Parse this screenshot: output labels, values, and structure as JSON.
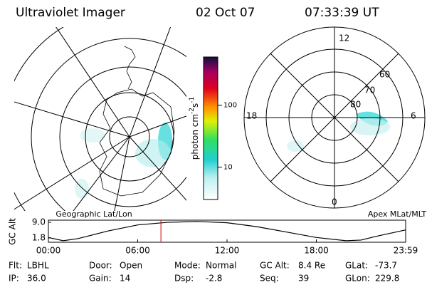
{
  "header": {
    "instrument": "Ultraviolet Imager",
    "date": "02 Oct 07",
    "time": "07:33:39 UT"
  },
  "geographic_map": {
    "caption": "Geographic Lat/Lon"
  },
  "magnetic_map": {
    "caption": "Apex MLat/MLT",
    "mlt_labels": [
      "12",
      "18",
      "6",
      "0"
    ],
    "mlat_labels": [
      "60",
      "70",
      "80"
    ]
  },
  "colorbar": {
    "label": "photon cm",
    "exp1": "-2",
    "unit2": "s",
    "exp2": "-1",
    "log": true,
    "ylim": [
      3,
      600
    ],
    "yticks": [
      10,
      100
    ]
  },
  "orbit_chart": {
    "type": "line",
    "ylabel": "GC Alt",
    "x": [
      0,
      1,
      2,
      4,
      6,
      8,
      10,
      12,
      14,
      16,
      18,
      20,
      21,
      22,
      24
    ],
    "values": [
      2.0,
      0.5,
      1.5,
      5.0,
      7.8,
      9.0,
      9.4,
      8.8,
      7.0,
      4.5,
      2.0,
      0.5,
      0.8,
      2.5,
      5.5
    ],
    "color": "#000000",
    "current_time": 7.56,
    "current_color": "#cc0000",
    "xlim": [
      0,
      24
    ],
    "ylim": [
      -0.2,
      10
    ],
    "xticks": [
      {
        "value": 0,
        "label": "00:00"
      },
      {
        "value": 6,
        "label": "06:00"
      },
      {
        "value": 12,
        "label": "12:00"
      },
      {
        "value": 18,
        "label": "18:00"
      },
      {
        "value": 24,
        "label": "23:59"
      }
    ],
    "yticks": [
      {
        "value": 9,
        "label": "9.0"
      },
      1.8
    ]
  },
  "info": [
    [
      {
        "label": "Flt:",
        "value": "LBHL"
      },
      {
        "label": "Door:",
        "value": "Open"
      },
      {
        "label": "Mode:",
        "value": "Normal"
      },
      {
        "label": "GC Alt:",
        "value": "8.4 Re"
      },
      {
        "label": "GLat:",
        "value": "-73.7"
      }
    ],
    [
      {
        "label": "IP:",
        "value": "36.0"
      },
      {
        "label": "Gain:",
        "value": "14"
      },
      {
        "label": "Dsp:",
        "value": "-2.8"
      },
      {
        "label": "Seq:",
        "value": "39"
      },
      {
        "label": "GLon:",
        "value": "229.8"
      }
    ]
  ]
}
